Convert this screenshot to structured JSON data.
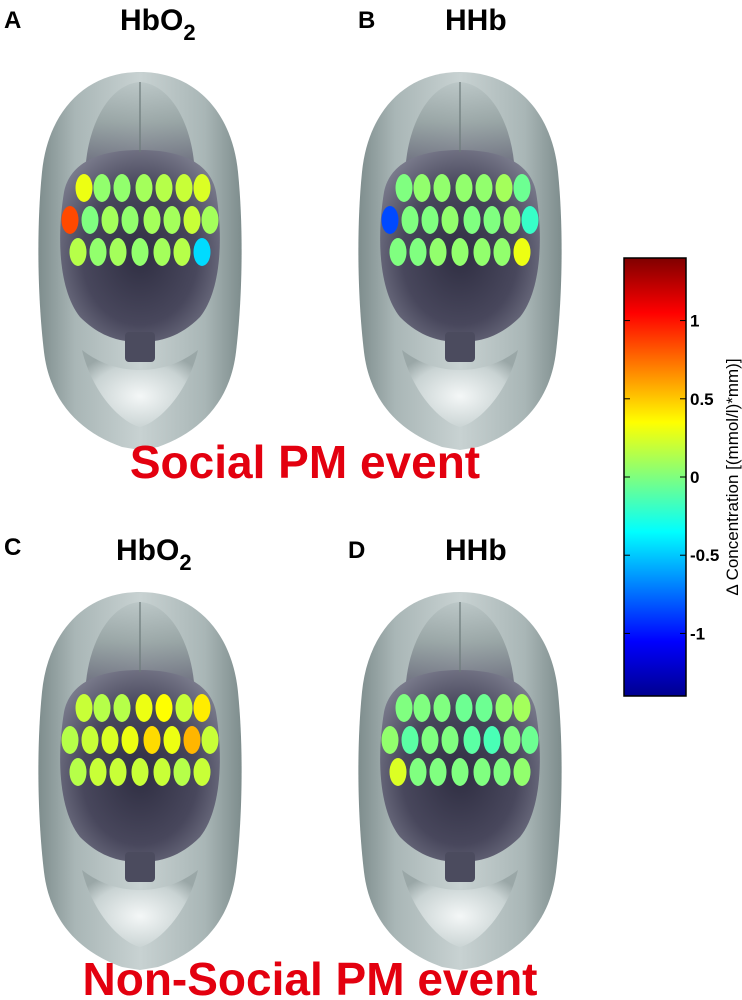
{
  "panels": [
    {
      "letter": "A",
      "title_main": "HbO",
      "title_sub": "2",
      "channel_values": [
        0.3,
        0.05,
        0.05,
        0.1,
        0.15,
        0.2,
        0.25,
        0.85,
        0.0,
        0.1,
        0.05,
        0.1,
        0.1,
        0.2,
        0.1,
        0.15,
        0.05,
        0.1,
        0.05,
        0.1,
        0.15,
        -0.45
      ]
    },
    {
      "letter": "B",
      "title_main": "HHb",
      "title_sub": "",
      "channel_values": [
        0.0,
        0.05,
        0.05,
        0.05,
        0.05,
        0.1,
        -0.05,
        -0.85,
        0.0,
        0.0,
        0.05,
        0.0,
        0.0,
        0.05,
        -0.2,
        0.0,
        0.0,
        0.05,
        0.05,
        0.05,
        0.05,
        0.3
      ]
    },
    {
      "letter": "C",
      "title_main": "HbO",
      "title_sub": "2",
      "channel_values": [
        0.2,
        0.15,
        0.15,
        0.3,
        0.35,
        0.2,
        0.4,
        0.15,
        0.2,
        0.25,
        0.3,
        0.45,
        0.3,
        0.55,
        0.2,
        0.15,
        0.2,
        0.2,
        0.2,
        0.2,
        0.15,
        0.2
      ]
    },
    {
      "letter": "D",
      "title_main": "HHb",
      "title_sub": "",
      "channel_values": [
        0.0,
        0.0,
        0.0,
        -0.05,
        -0.05,
        0.05,
        0.1,
        0.05,
        -0.1,
        0.0,
        0.0,
        -0.1,
        -0.15,
        0.0,
        -0.05,
        0.25,
        0.0,
        0.0,
        0.0,
        0.0,
        0.0,
        0.05
      ]
    }
  ],
  "captions": {
    "top": "Social PM event",
    "bottom": "Non-Social PM event"
  },
  "colorbar": {
    "label": "Δ Concentration [(mmol/l)*mm)]",
    "ticks": [
      "1",
      "0.5",
      "0",
      "-0.5",
      "-1"
    ],
    "tick_values": [
      1,
      0.5,
      0,
      -0.5,
      -1
    ],
    "range": [
      -1.4,
      1.4
    ],
    "colormap": "jet"
  },
  "colors": {
    "caption": "#e3000f",
    "head_outer": "#9aa8a8",
    "brain_dark": "#3b3a4e"
  }
}
